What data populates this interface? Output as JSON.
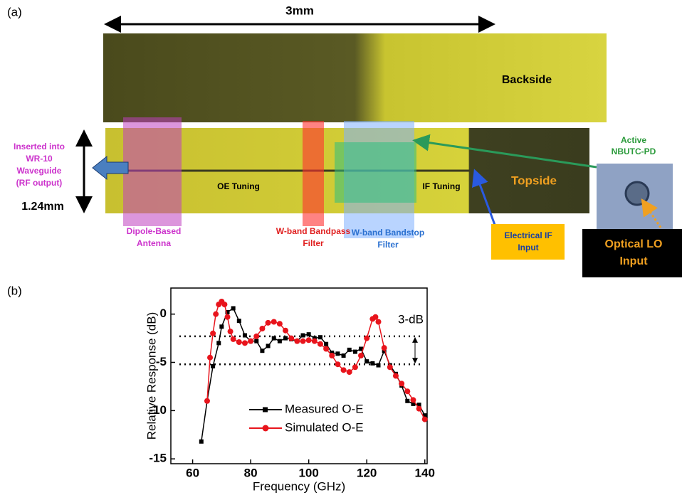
{
  "panel_a": {
    "panel_label": "(a)",
    "labels": [
      {
        "lines": [
          "3mm"
        ],
        "color": "#000000"
      },
      {
        "lines": [
          "Backside"
        ],
        "color": "#000000"
      },
      {
        "lines": [
          "Inserted into",
          "WR-10",
          "Waveguide",
          "(RF output)"
        ],
        "color": "#cc33cc"
      },
      {
        "lines": [
          "1.24mm"
        ],
        "color": "#000000"
      },
      {
        "lines": [
          "OE Tuning"
        ],
        "color": "#000000"
      },
      {
        "lines": [
          "IF Tuning"
        ],
        "color": "#000000"
      },
      {
        "lines": [
          "Topside"
        ],
        "color": "#f0a020"
      },
      {
        "lines": [
          "Active",
          "NBUTC-PD"
        ],
        "color": "#2a9a3a"
      },
      {
        "lines": [
          "Dipole-Based",
          "Antenna"
        ],
        "color": "#cc33cc"
      },
      {
        "lines": [
          "W-band Bandpass",
          "Filter"
        ],
        "color": "#e02020"
      },
      {
        "lines": [
          "W-band Bandstop",
          "Filter"
        ],
        "color": "#2a70d0"
      },
      {
        "lines": [
          "Electrical IF",
          "Input"
        ],
        "color": "#1a3fa0"
      },
      {
        "lines": [
          "Optical LO",
          "Input"
        ],
        "color": "#f0a020"
      }
    ]
  },
  "panel_b": {
    "panel_label": "(b)"
  },
  "chart_data": {
    "type": "line",
    "xlabel": "Frequency (GHz)",
    "ylabel": "Relative Response (dB)",
    "annotation": "3-dB",
    "reference_lines": [
      -2.3,
      -5.2
    ],
    "xlim": [
      52.5,
      140.8
    ],
    "ylim": [
      -15.5,
      2.7
    ],
    "xticks": [
      60,
      80,
      100,
      120,
      140
    ],
    "yticks": [
      -15,
      -10,
      -5,
      0
    ],
    "series": [
      {
        "name": "Measured O-E",
        "color": "#000000",
        "marker": "square",
        "x": [
          63,
          65,
          67,
          69,
          70,
          72,
          74,
          76,
          78,
          80,
          82,
          84,
          86,
          88,
          90,
          92,
          94,
          96,
          98,
          100,
          102,
          104,
          106,
          108,
          110,
          112,
          114,
          116,
          118,
          120,
          122,
          124,
          126,
          128,
          130,
          132,
          134,
          136,
          138,
          140
        ],
        "values": [
          -13.2,
          -9,
          -5.4,
          -3,
          -1.3,
          0.2,
          0.6,
          -0.7,
          -2.2,
          -2.8,
          -2.8,
          -3.8,
          -3.3,
          -2.5,
          -2.8,
          -2.5,
          -2.6,
          -2.8,
          -2.2,
          -2.1,
          -2.5,
          -2.4,
          -3.1,
          -4.0,
          -4.1,
          -4.3,
          -3.7,
          -3.9,
          -3.6,
          -4.9,
          -5.1,
          -5.3,
          -3.8,
          -5.3,
          -6.2,
          -7.4,
          -9.0,
          -9.3,
          -9.4,
          -10.5
        ]
      },
      {
        "name": "Simulated O-E",
        "color": "#e8141c",
        "marker": "circle",
        "x": [
          65,
          66,
          67,
          68,
          69,
          70,
          71,
          72,
          73,
          74,
          76,
          78,
          80,
          82,
          84,
          86,
          88,
          90,
          92,
          94,
          96,
          98,
          100,
          102,
          104,
          106,
          108,
          110,
          112,
          114,
          116,
          118,
          120,
          122,
          123,
          124,
          126,
          128,
          130,
          132,
          134,
          136,
          138,
          140
        ],
        "values": [
          -9,
          -4.5,
          -2,
          0,
          1.0,
          1.3,
          1.0,
          -0.3,
          -1.8,
          -2.6,
          -2.9,
          -3,
          -2.8,
          -2.3,
          -1.5,
          -0.9,
          -0.8,
          -1.0,
          -1.7,
          -2.5,
          -2.8,
          -2.8,
          -2.7,
          -2.8,
          -3.1,
          -3.6,
          -4.3,
          -5.2,
          -5.8,
          -6.0,
          -5.5,
          -4.3,
          -2.5,
          -0.5,
          -0.3,
          -0.8,
          -3.5,
          -5.5,
          -6.4,
          -7.2,
          -8.0,
          -8.9,
          -9.8,
          -10.9
        ]
      }
    ]
  }
}
